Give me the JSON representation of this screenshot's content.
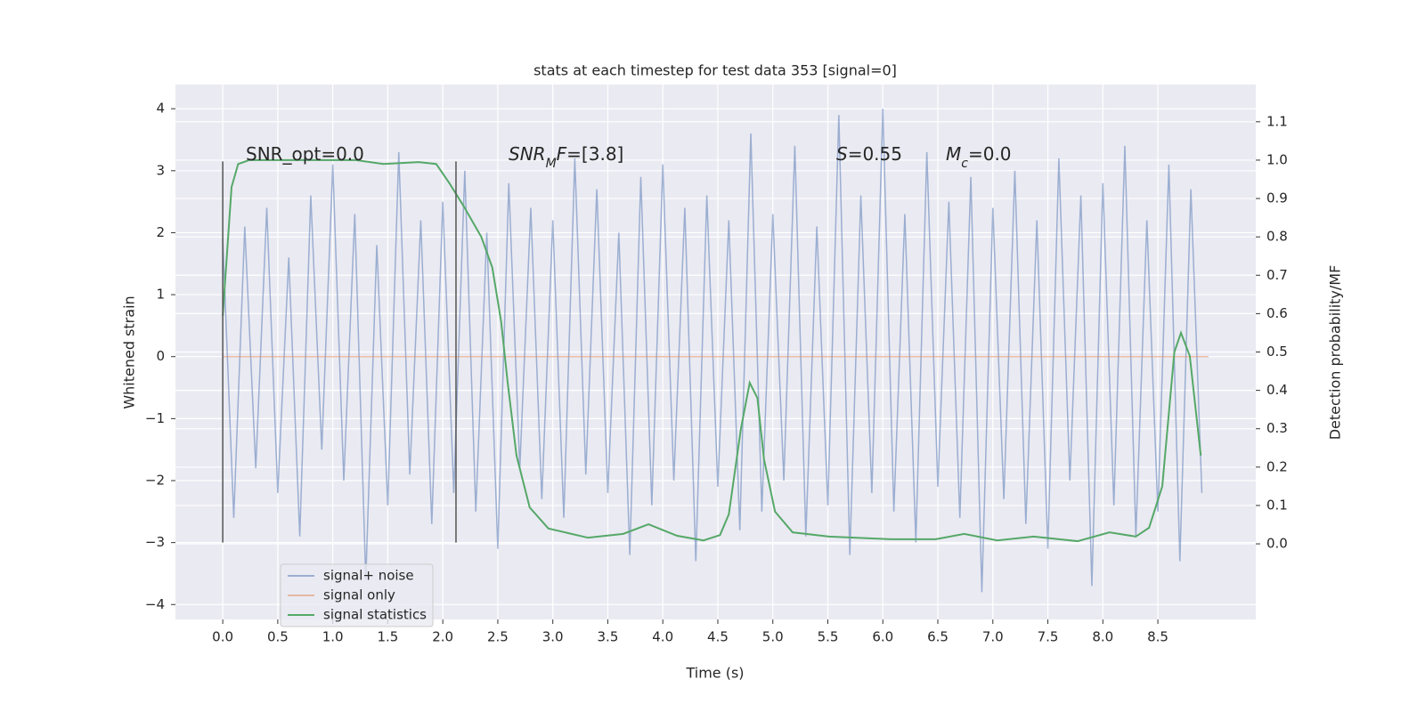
{
  "chart_data": {
    "type": "line",
    "title": "stats at each timestep for test data 353 [signal=0]",
    "xlabel": "Time (s)",
    "ylabel": "Whitened strain",
    "y2label": "Detection probability/MF",
    "xlim": [
      -0.43,
      9.39
    ],
    "ylim": [
      -4.24,
      4.39
    ],
    "y2lim": [
      -0.197,
      1.197
    ],
    "xticks": [
      {
        "value": 0,
        "label": "0.0"
      },
      {
        "value": 0.5,
        "label": "0.5"
      },
      {
        "value": 1,
        "label": "1.0"
      },
      {
        "value": 1.5,
        "label": "1.5"
      },
      {
        "value": 2,
        "label": "2.0"
      },
      {
        "value": 2.5,
        "label": "2.5"
      },
      {
        "value": 3,
        "label": "3.0"
      },
      {
        "value": 3.5,
        "label": "3.5"
      },
      {
        "value": 4,
        "label": "4.0"
      },
      {
        "value": 4.5,
        "label": "4.5"
      },
      {
        "value": 5,
        "label": "5.0"
      },
      {
        "value": 5.5,
        "label": "5.5"
      },
      {
        "value": 6,
        "label": "6.0"
      },
      {
        "value": 6.5,
        "label": "6.5"
      },
      {
        "value": 7,
        "label": "7.0"
      },
      {
        "value": 7.5,
        "label": "7.5"
      },
      {
        "value": 8,
        "label": "8.0"
      },
      {
        "value": 8.5,
        "label": "8.5"
      }
    ],
    "yticks": [
      {
        "value": -4,
        "label": "−4"
      },
      {
        "value": -3,
        "label": "−3"
      },
      {
        "value": -2,
        "label": "−2"
      },
      {
        "value": -1,
        "label": "−1"
      },
      0,
      1,
      2,
      3,
      4
    ],
    "y2ticks": [
      {
        "value": 0,
        "label": "0.0"
      },
      {
        "value": 0.1,
        "label": "0.1"
      },
      {
        "value": 0.2,
        "label": "0.2"
      },
      {
        "value": 0.3,
        "label": "0.3"
      },
      {
        "value": 0.4,
        "label": "0.4"
      },
      {
        "value": 0.5,
        "label": "0.5"
      },
      {
        "value": 0.6,
        "label": "0.6"
      },
      {
        "value": 0.7,
        "label": "0.7"
      },
      {
        "value": 0.8,
        "label": "0.8"
      },
      {
        "value": 0.9,
        "label": "0.9"
      },
      {
        "value": 1,
        "label": "1.0"
      },
      {
        "value": 1.1,
        "label": "1.1"
      }
    ],
    "grid": true,
    "legend": "lower left",
    "series": [
      {
        "name": "signal+ noise",
        "color": "#4c72b0",
        "opacity": 0.5,
        "x": [
          0,
          0.1,
          0.2,
          0.3,
          0.4,
          0.5,
          0.6,
          0.7,
          0.8,
          0.9,
          1,
          1.1,
          1.2,
          1.3,
          1.4,
          1.5,
          1.6,
          1.7,
          1.8,
          1.9,
          2,
          2.1,
          2.2,
          2.3,
          2.4,
          2.5,
          2.6,
          2.7,
          2.8,
          2.9,
          3,
          3.1,
          3.2,
          3.3,
          3.4,
          3.5,
          3.6,
          3.7,
          3.8,
          3.9,
          4,
          4.1,
          4.2,
          4.3,
          4.4,
          4.5,
          4.6,
          4.7,
          4.8,
          4.9,
          5,
          5.1,
          5.2,
          5.3,
          5.4,
          5.5,
          5.6,
          5.7,
          5.8,
          5.9,
          6,
          6.1,
          6.2,
          6.3,
          6.4,
          6.5,
          6.6,
          6.7,
          6.8,
          6.9,
          7,
          7.1,
          7.2,
          7.3,
          7.4,
          7.5,
          7.6,
          7.7,
          7.8,
          7.9,
          8,
          8.1,
          8.2,
          8.3,
          8.4,
          8.5,
          8.6,
          8.7,
          8.8,
          8.9
        ],
        "values": [
          1.9,
          -2.6,
          2.1,
          -1.8,
          2.4,
          -2.2,
          1.6,
          -2.9,
          2.6,
          -1.5,
          3.1,
          -2.0,
          2.3,
          -3.6,
          1.8,
          -2.4,
          3.3,
          -1.9,
          2.2,
          -2.7,
          2.5,
          -2.2,
          3.0,
          -2.5,
          2.0,
          -3.1,
          2.8,
          -1.8,
          2.4,
          -2.3,
          2.2,
          -2.6,
          3.2,
          -1.9,
          2.7,
          -2.2,
          2.0,
          -3.2,
          2.9,
          -2.4,
          3.1,
          -2.0,
          2.4,
          -3.3,
          2.6,
          -2.1,
          2.2,
          -2.8,
          3.6,
          -2.5,
          2.3,
          -2.0,
          3.4,
          -2.9,
          2.1,
          -2.4,
          3.9,
          -3.2,
          2.6,
          -2.2,
          4.0,
          -2.5,
          2.3,
          -3.0,
          3.3,
          -2.1,
          2.5,
          -2.6,
          2.9,
          -3.8,
          2.4,
          -2.3,
          3.0,
          -2.7,
          2.2,
          -3.1,
          3.2,
          -2.0,
          2.6,
          -3.7,
          2.8,
          -2.4,
          3.4,
          -2.9,
          2.2,
          -2.5,
          3.1,
          -3.3,
          2.7,
          -2.2
        ]
      },
      {
        "name": "signal only",
        "color": "#dd8452",
        "opacity": 0.5,
        "x": [
          0,
          8.96
        ],
        "values": [
          0,
          0
        ]
      },
      {
        "name": "signal statistics",
        "color": "#55a868",
        "opacity": 1,
        "axis": "y2",
        "x": [
          0,
          0.08,
          0.14,
          0.24,
          0.81,
          1.21,
          1.46,
          1.78,
          1.94,
          2.06,
          2.19,
          2.35,
          2.45,
          2.53,
          2.59,
          2.67,
          2.79,
          2.96,
          3.32,
          3.64,
          3.87,
          4.13,
          4.37,
          4.52,
          4.6,
          4.71,
          4.79,
          4.86,
          4.92,
          5.02,
          5.18,
          5.51,
          6.07,
          6.48,
          6.74,
          7.04,
          7.37,
          7.77,
          8.06,
          8.3,
          8.42,
          8.54,
          8.65,
          8.71,
          8.79,
          8.89
        ],
        "values": [
          0.594,
          0.93,
          0.99,
          1.0,
          1.0,
          1.0,
          0.99,
          0.995,
          0.99,
          0.94,
          0.88,
          0.8,
          0.72,
          0.58,
          0.42,
          0.23,
          0.095,
          0.04,
          0.016,
          0.026,
          0.051,
          0.021,
          0.009,
          0.023,
          0.077,
          0.3,
          0.42,
          0.38,
          0.22,
          0.084,
          0.03,
          0.019,
          0.012,
          0.012,
          0.026,
          0.009,
          0.019,
          0.007,
          0.03,
          0.019,
          0.042,
          0.15,
          0.5,
          0.55,
          0.49,
          0.23
        ]
      }
    ],
    "vlines": [
      {
        "x": 0,
        "ymin": -3.0,
        "ymax": 3.15
      },
      {
        "x": 2.12,
        "ymin": -3.0,
        "ymax": 3.15
      }
    ],
    "annotations": [
      [
        {
          "text": "SNR_opt=0.0"
        }
      ],
      [
        {
          "text": "SNR",
          "italic": true
        },
        {
          "text": "M",
          "italic": true,
          "sub": true
        },
        {
          "text": "F",
          "italic": true
        },
        {
          "text": "=[3.8]"
        }
      ],
      [
        {
          "text": "S",
          "italic": true
        },
        {
          "text": "=0.55"
        }
      ],
      [
        {
          "text": "M",
          "italic": true
        },
        {
          "text": "c",
          "italic": true,
          "sub": true
        },
        {
          "text": "=0.0"
        }
      ]
    ]
  }
}
